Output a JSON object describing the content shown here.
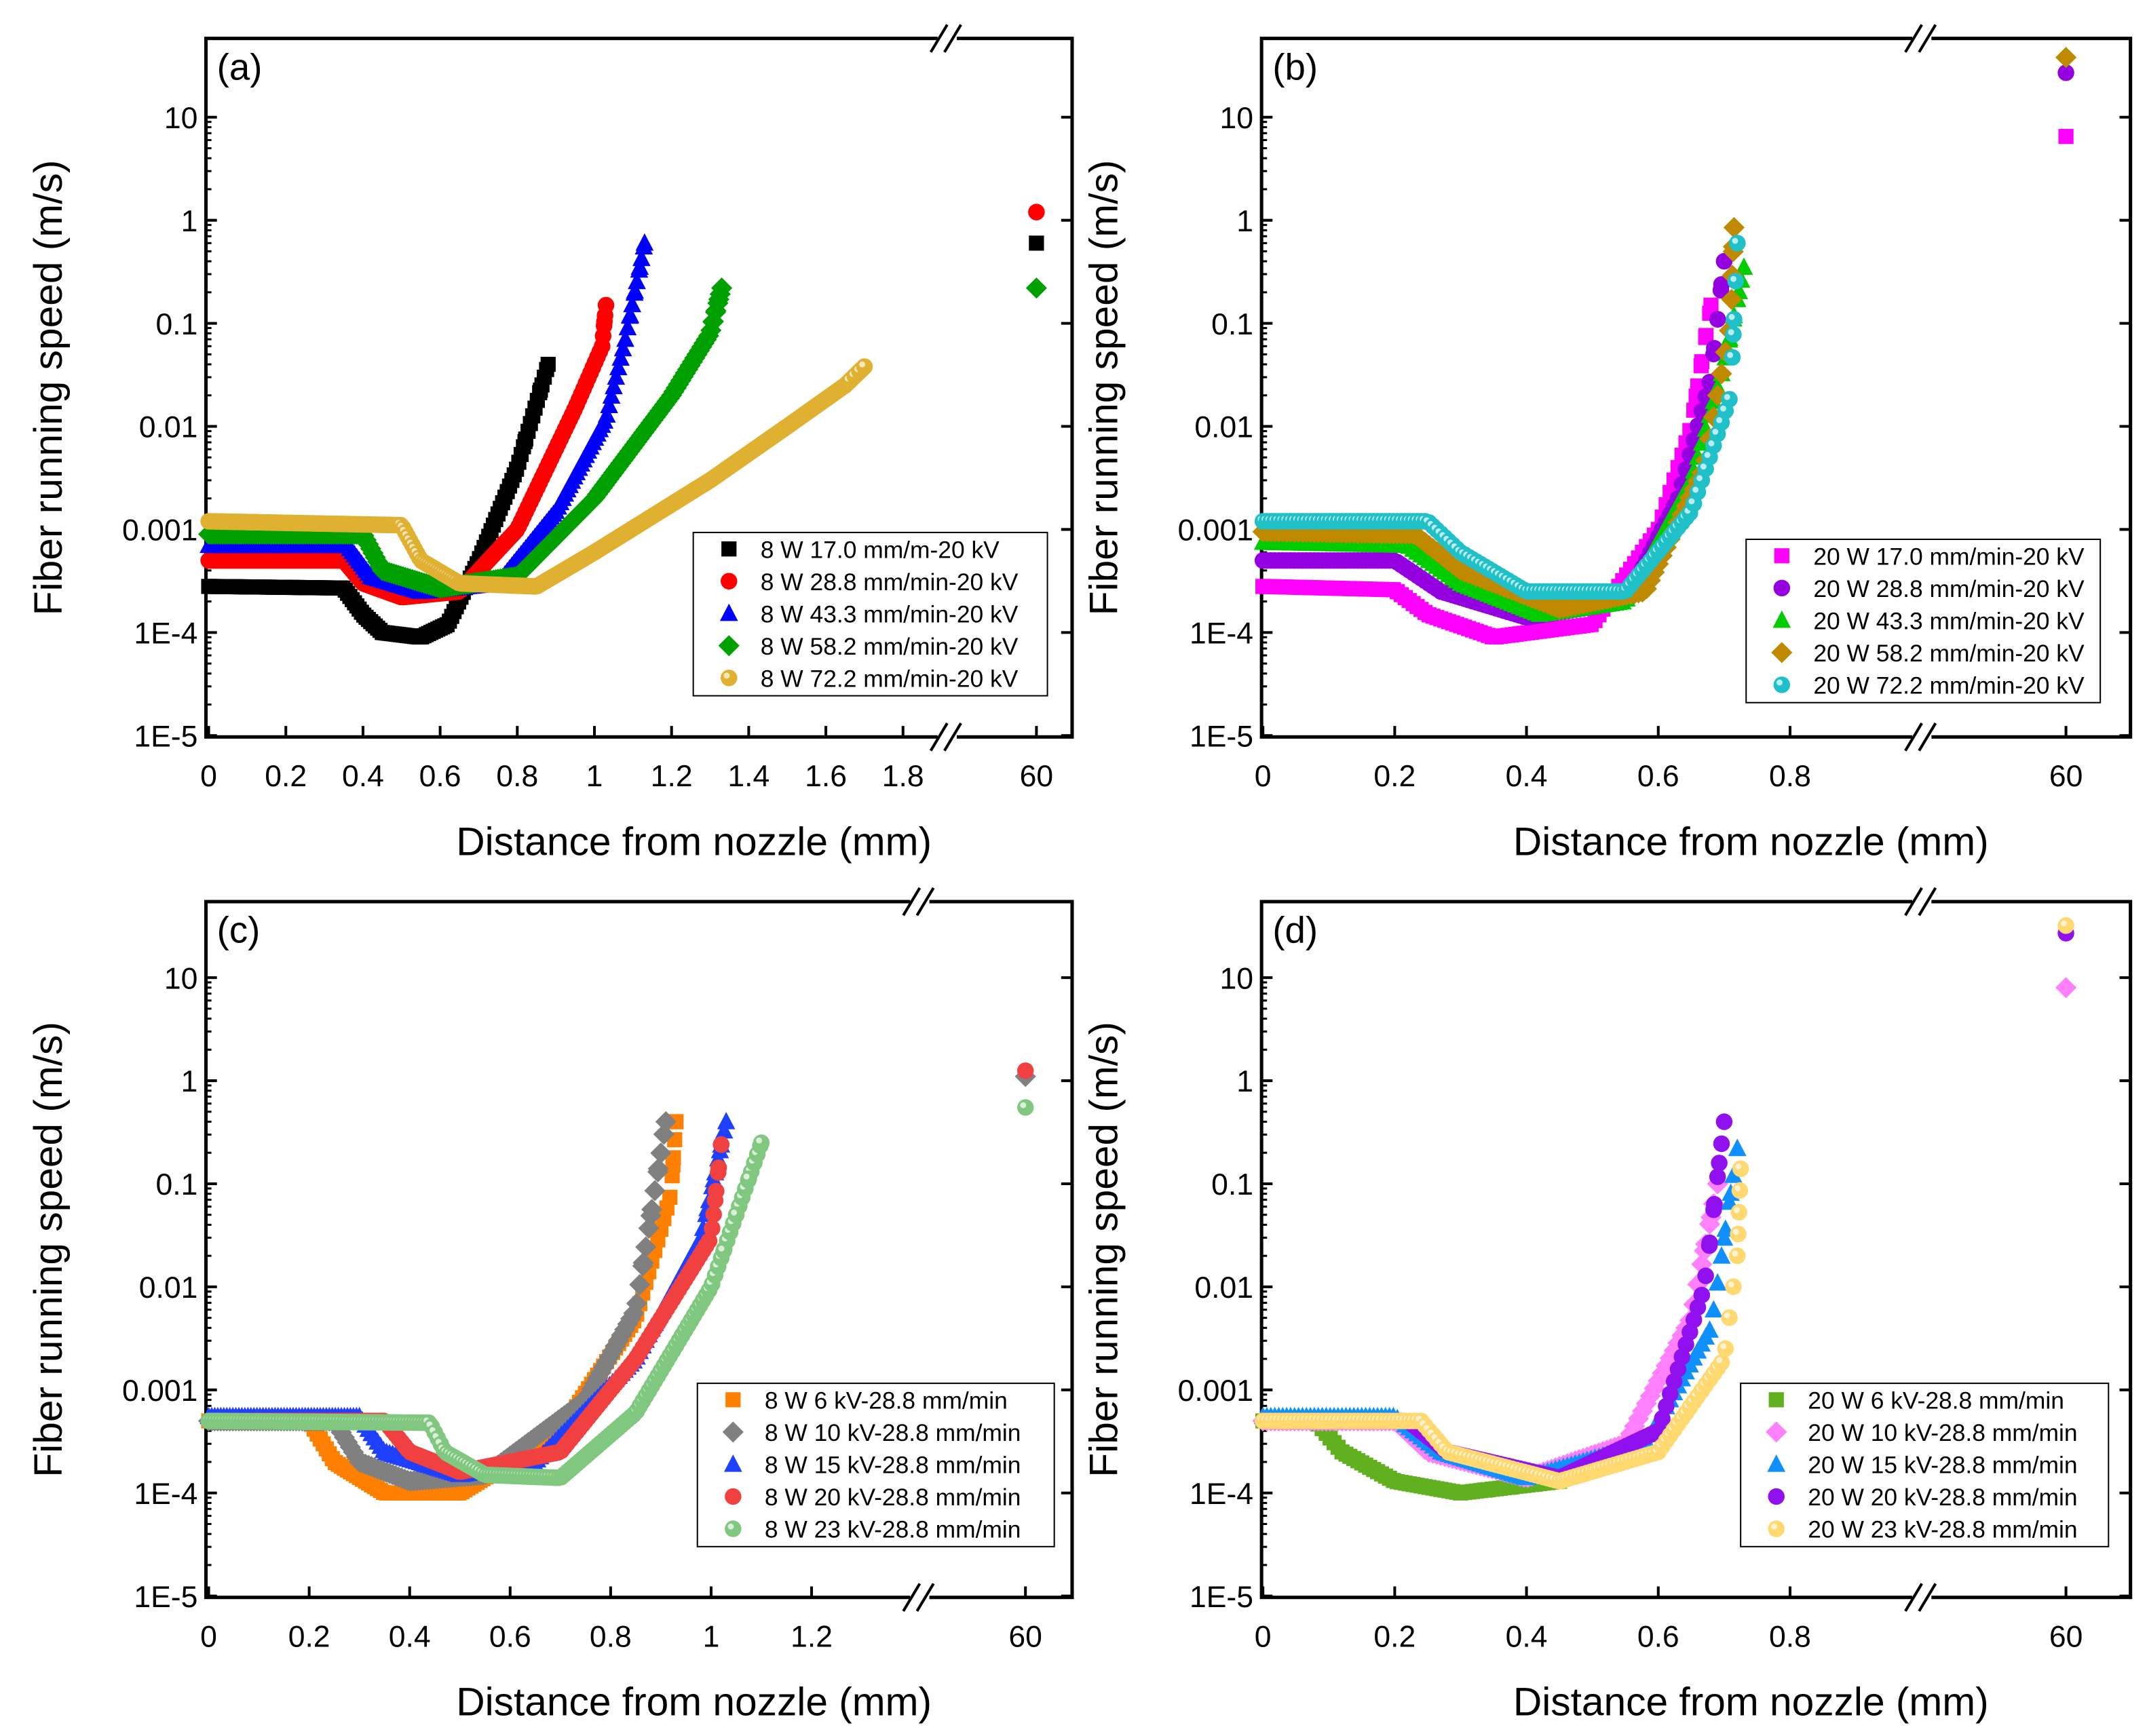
{
  "chart_data": [
    {
      "type": "scatter",
      "panel_label": "(a)",
      "xlabel": "Distance from nozzle (mm)",
      "ylabel": "Fiber running speed (m/s)",
      "yscale": "log",
      "ylim": [
        1e-05,
        60
      ],
      "xlim": [
        0,
        1.9
      ],
      "x_break": true,
      "xticks": [
        "0",
        "0.2",
        "0.4",
        "0.6",
        "0.8",
        "1",
        "1.2",
        "1.4",
        "1.6",
        "1.8"
      ],
      "xticks_after_break": [
        "60"
      ],
      "yticks": [
        "1E-5",
        "1E-4",
        "0.001",
        "0.01",
        "0.1",
        "1",
        "10"
      ],
      "legend_position": "bottom-right",
      "series": [
        {
          "name": "8 W 17.0 mm/m-20 kV",
          "marker": "square",
          "color": "#000000",
          "points": [
            [
              0,
              0.00028
            ],
            [
              0.35,
              0.00027
            ],
            [
              0.4,
              0.00015
            ],
            [
              0.45,
              0.0001
            ],
            [
              0.55,
              9e-05
            ],
            [
              0.62,
              0.00012
            ],
            [
              0.7,
              0.0005
            ],
            [
              0.8,
              0.004
            ],
            [
              0.88,
              0.04
            ]
          ],
          "at_60": 0.6
        },
        {
          "name": "8 W 28.8 mm/min-20 kV",
          "marker": "circle",
          "color": "#ff0000",
          "points": [
            [
              0,
              0.0005
            ],
            [
              0.35,
              0.0005
            ],
            [
              0.4,
              0.0003
            ],
            [
              0.5,
              0.00022
            ],
            [
              0.65,
              0.00025
            ],
            [
              0.8,
              0.001
            ],
            [
              0.95,
              0.015
            ],
            [
              1.02,
              0.06
            ],
            [
              1.03,
              0.15
            ]
          ],
          "at_60": 1.2
        },
        {
          "name": "8 W 43.3 mm/min-20 kV",
          "marker": "triangle",
          "color": "#0000ff",
          "points": [
            [
              0,
              0.0007
            ],
            [
              0.36,
              0.0007
            ],
            [
              0.42,
              0.00035
            ],
            [
              0.55,
              0.00025
            ],
            [
              0.75,
              0.0003
            ],
            [
              0.9,
              0.0015
            ],
            [
              1.03,
              0.012
            ],
            [
              1.08,
              0.07
            ],
            [
              1.13,
              0.6
            ]
          ],
          "at_60": null
        },
        {
          "name": "8 W 58.2 mm/min-20 kV",
          "marker": "diamond",
          "color": "#00a000",
          "points": [
            [
              0,
              0.0009
            ],
            [
              0.4,
              0.0009
            ],
            [
              0.45,
              0.0004
            ],
            [
              0.6,
              0.00027
            ],
            [
              0.8,
              0.00035
            ],
            [
              1.0,
              0.002
            ],
            [
              1.2,
              0.02
            ],
            [
              1.3,
              0.08
            ],
            [
              1.33,
              0.22
            ]
          ],
          "at_60": 0.22
        },
        {
          "name": "8 W 72.2 mm/min-20 kV",
          "marker": "sphere",
          "color": "#e0b030",
          "points": [
            [
              0,
              0.0012
            ],
            [
              0.5,
              0.0011
            ],
            [
              0.55,
              0.0005
            ],
            [
              0.65,
              0.0003
            ],
            [
              0.85,
              0.00028
            ],
            [
              1.0,
              0.0006
            ],
            [
              1.3,
              0.003
            ],
            [
              1.5,
              0.01
            ],
            [
              1.65,
              0.025
            ],
            [
              1.7,
              0.038
            ]
          ],
          "at_60": null
        }
      ]
    },
    {
      "type": "scatter",
      "panel_label": "(b)",
      "xlabel": "Distance from nozzle (mm)",
      "ylabel": "Fiber running speed (m/s)",
      "yscale": "log",
      "ylim": [
        1e-05,
        60
      ],
      "xlim": [
        0,
        1.0
      ],
      "x_break": true,
      "xticks": [
        "0",
        "0.2",
        "0.4",
        "0.6",
        "0.8"
      ],
      "xticks_after_break": [
        "60"
      ],
      "yticks": [
        "1E-5",
        "1E-4",
        "0.001",
        "0.01",
        "0.1",
        "1",
        "10"
      ],
      "legend_position": "bottom-right",
      "series": [
        {
          "name": "20 W 17.0 mm/min-20 kV",
          "marker": "square",
          "color": "#ff00ff",
          "points": [
            [
              0,
              0.00028
            ],
            [
              0.2,
              0.00026
            ],
            [
              0.25,
              0.00015
            ],
            [
              0.35,
              9e-05
            ],
            [
              0.5,
              0.00012
            ],
            [
              0.6,
              0.001
            ],
            [
              0.65,
              0.01
            ],
            [
              0.68,
              0.15
            ]
          ],
          "at_60": 6.5
        },
        {
          "name": "20 W 28.8 mm/min-20 kV",
          "marker": "circle",
          "color": "#9400e0",
          "points": [
            [
              0,
              0.0005
            ],
            [
              0.2,
              0.0005
            ],
            [
              0.27,
              0.00025
            ],
            [
              0.4,
              0.00014
            ],
            [
              0.55,
              0.0002
            ],
            [
              0.63,
              0.002
            ],
            [
              0.68,
              0.03
            ],
            [
              0.7,
              0.4
            ]
          ],
          "at_60": 27
        },
        {
          "name": "20 W 43.3 mm/min-20 kV",
          "marker": "triangle",
          "color": "#00cc00",
          "points": [
            [
              0,
              0.00075
            ],
            [
              0.22,
              0.0007
            ],
            [
              0.3,
              0.0003
            ],
            [
              0.42,
              0.00015
            ],
            [
              0.55,
              0.0002
            ],
            [
              0.65,
              0.003
            ],
            [
              0.7,
              0.04
            ],
            [
              0.73,
              0.35
            ]
          ],
          "at_60": null
        },
        {
          "name": "20 W 58.2 mm/min-20 kV",
          "marker": "diamond",
          "color": "#c08a00",
          "points": [
            [
              0,
              0.00095
            ],
            [
              0.23,
              0.0009
            ],
            [
              0.3,
              0.0004
            ],
            [
              0.45,
              0.00017
            ],
            [
              0.58,
              0.00025
            ],
            [
              0.67,
              0.004
            ],
            [
              0.71,
              0.1
            ],
            [
              0.715,
              0.85
            ]
          ],
          "at_60": 38
        },
        {
          "name": "20 W 72.2 mm/min-20 kV",
          "marker": "sphere",
          "color": "#20c0c8",
          "points": [
            [
              0,
              0.0012
            ],
            [
              0.25,
              0.0012
            ],
            [
              0.3,
              0.0006
            ],
            [
              0.4,
              0.00025
            ],
            [
              0.55,
              0.00025
            ],
            [
              0.65,
              0.0015
            ],
            [
              0.71,
              0.02
            ],
            [
              0.72,
              0.6
            ]
          ],
          "at_60": null
        }
      ]
    },
    {
      "type": "scatter",
      "panel_label": "(c)",
      "xlabel": "Distance from nozzle (mm)",
      "ylabel": "Fiber running speed (m/s)",
      "yscale": "log",
      "ylim": [
        1e-05,
        60
      ],
      "xlim": [
        0,
        1.4
      ],
      "x_break": true,
      "xticks": [
        "0",
        "0.2",
        "0.4",
        "0.6",
        "0.8",
        "1",
        "1.2"
      ],
      "xticks_after_break": [
        "60"
      ],
      "yticks": [
        "1E-5",
        "1E-4",
        "0.001",
        "0.01",
        "0.1",
        "1",
        "10"
      ],
      "legend_position": "bottom-right",
      "series": [
        {
          "name": "8 W 6 kV-28.8 mm/min",
          "marker": "square",
          "color": "#ff8000",
          "points": [
            [
              0,
              0.0005
            ],
            [
              0.2,
              0.0005
            ],
            [
              0.25,
              0.0002
            ],
            [
              0.35,
              0.0001
            ],
            [
              0.5,
              0.0001
            ],
            [
              0.7,
              0.0004
            ],
            [
              0.85,
              0.005
            ],
            [
              0.92,
              0.08
            ],
            [
              0.93,
              0.4
            ]
          ],
          "at_60": null
        },
        {
          "name": "8 W 10 kV-28.8 mm/min",
          "marker": "diamond",
          "color": "#808080",
          "points": [
            [
              0,
              0.0005
            ],
            [
              0.25,
              0.0005
            ],
            [
              0.3,
              0.0002
            ],
            [
              0.4,
              0.00013
            ],
            [
              0.55,
              0.00015
            ],
            [
              0.75,
              0.0008
            ],
            [
              0.85,
              0.006
            ],
            [
              0.91,
              0.4
            ]
          ],
          "at_60": 1.1
        },
        {
          "name": "8 W 15 kV-28.8 mm/min",
          "marker": "triangle",
          "color": "#2040ff",
          "points": [
            [
              0,
              0.00055
            ],
            [
              0.3,
              0.00055
            ],
            [
              0.35,
              0.00025
            ],
            [
              0.5,
              0.00015
            ],
            [
              0.65,
              0.0002
            ],
            [
              0.85,
              0.002
            ],
            [
              0.98,
              0.03
            ],
            [
              1.03,
              0.4
            ]
          ],
          "at_60": null
        },
        {
          "name": "8 W 20 kV-28.8 mm/min",
          "marker": "circle",
          "color": "#f04040",
          "points": [
            [
              0,
              0.0005
            ],
            [
              0.35,
              0.0005
            ],
            [
              0.4,
              0.00025
            ],
            [
              0.5,
              0.00016
            ],
            [
              0.7,
              0.00025
            ],
            [
              0.85,
              0.002
            ],
            [
              1.0,
              0.03
            ],
            [
              1.02,
              0.24
            ]
          ],
          "at_60": 1.25
        },
        {
          "name": "8 W 23 kV-28.8 mm/min",
          "marker": "sphere",
          "color": "#80c880",
          "points": [
            [
              0,
              0.0005
            ],
            [
              0.44,
              0.00048
            ],
            [
              0.47,
              0.00025
            ],
            [
              0.55,
              0.00015
            ],
            [
              0.7,
              0.00014
            ],
            [
              0.85,
              0.0006
            ],
            [
              1.0,
              0.01
            ],
            [
              1.1,
              0.25
            ]
          ],
          "at_60": 0.55
        }
      ]
    },
    {
      "type": "scatter",
      "panel_label": "(d)",
      "xlabel": "Distance from nozzle (mm)",
      "ylabel": "Fiber running speed (m/s)",
      "yscale": "log",
      "ylim": [
        1e-05,
        60
      ],
      "xlim": [
        0,
        1.0
      ],
      "x_break": true,
      "xticks": [
        "0",
        "0.2",
        "0.4",
        "0.6",
        "0.8"
      ],
      "xticks_after_break": [
        "60"
      ],
      "yticks": [
        "1E-5",
        "1E-4",
        "0.001",
        "0.01",
        "0.1",
        "1",
        "10"
      ],
      "legend_position": "bottom-right",
      "series": [
        {
          "name": "20 W 6 kV-28.8 mm/min",
          "marker": "square",
          "color": "#60b020",
          "points": [
            [
              0,
              0.0005
            ],
            [
              0.08,
              0.0005
            ],
            [
              0.12,
              0.00025
            ],
            [
              0.2,
              0.00013
            ],
            [
              0.3,
              0.0001
            ],
            [
              0.45,
              0.00013
            ]
          ],
          "at_60": null
        },
        {
          "name": "20 W 10 kV-28.8 mm/min",
          "marker": "diamond",
          "color": "#ff80ff",
          "points": [
            [
              0,
              0.0005
            ],
            [
              0.2,
              0.0005
            ],
            [
              0.25,
              0.00025
            ],
            [
              0.4,
              0.00014
            ],
            [
              0.55,
              0.0003
            ],
            [
              0.65,
              0.005
            ],
            [
              0.69,
              0.1
            ]
          ],
          "at_60": 8
        },
        {
          "name": "20 W 15 kV-28.8 mm/min",
          "marker": "triangle",
          "color": "#1090ff",
          "points": [
            [
              0,
              0.00055
            ],
            [
              0.2,
              0.00055
            ],
            [
              0.27,
              0.00025
            ],
            [
              0.4,
              0.00014
            ],
            [
              0.58,
              0.0003
            ],
            [
              0.68,
              0.004
            ],
            [
              0.72,
              0.22
            ]
          ],
          "at_60": null
        },
        {
          "name": "20 W 20 kV-28.8 mm/min",
          "marker": "circle",
          "color": "#9010f0",
          "points": [
            [
              0,
              0.0005
            ],
            [
              0.22,
              0.0005
            ],
            [
              0.28,
              0.00025
            ],
            [
              0.45,
              0.00014
            ],
            [
              0.6,
              0.0004
            ],
            [
              0.67,
              0.01
            ],
            [
              0.7,
              0.4
            ]
          ],
          "at_60": 27
        },
        {
          "name": "20 W 23 kV-28.8 mm/min",
          "marker": "sphere",
          "color": "#ffd870",
          "points": [
            [
              0,
              0.0005
            ],
            [
              0.24,
              0.0005
            ],
            [
              0.28,
              0.00025
            ],
            [
              0.45,
              0.00013
            ],
            [
              0.6,
              0.00025
            ],
            [
              0.7,
              0.002
            ],
            [
              0.72,
              0.02
            ],
            [
              0.725,
              0.14
            ]
          ],
          "at_60": 32
        }
      ]
    }
  ]
}
